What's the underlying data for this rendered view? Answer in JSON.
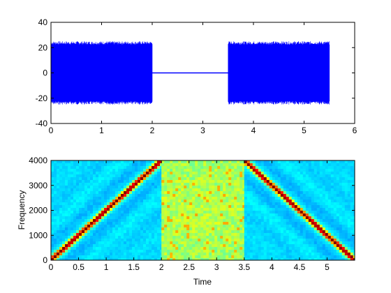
{
  "chart_data": [
    {
      "type": "line",
      "title": "",
      "xlabel": "",
      "ylabel": "",
      "xlim": [
        0,
        6
      ],
      "ylim": [
        -40,
        40
      ],
      "xticks": [
        0,
        1,
        2,
        3,
        4,
        5,
        6
      ],
      "yticks": [
        -40,
        -20,
        0,
        20,
        40
      ],
      "grid": false,
      "series_color": "#0000ff",
      "envelope": {
        "x": [
          0,
          2,
          2.0,
          3.5,
          3.5,
          5.5
        ],
        "amplitude": [
          25,
          25,
          0.4,
          0.4,
          25,
          25
        ]
      },
      "segments": [
        {
          "x_start": 0,
          "x_end": 2,
          "amplitude": 25
        },
        {
          "x_start": 2,
          "x_end": 3.5,
          "amplitude": 0.4
        },
        {
          "x_start": 3.5,
          "x_end": 5.5,
          "amplitude": 25
        }
      ]
    },
    {
      "type": "heatmap",
      "title": "",
      "xlabel": "Time",
      "ylabel": "Frequency",
      "xlim": [
        0,
        5.5
      ],
      "ylim": [
        0,
        4000
      ],
      "xticks": [
        0,
        0.5,
        1,
        1.5,
        2,
        2.5,
        3,
        3.5,
        4,
        4.5,
        5
      ],
      "yticks": [
        0,
        1000,
        2000,
        3000,
        4000
      ],
      "grid": false,
      "colormap": "jet",
      "regions": [
        {
          "kind": "chirp-up",
          "x_start": 0,
          "x_end": 2,
          "f_start": 0,
          "f_end": 4000
        },
        {
          "kind": "noise",
          "x_start": 2,
          "x_end": 3.5
        },
        {
          "kind": "chirp-down",
          "x_start": 3.5,
          "x_end": 5.5,
          "f_start": 4000,
          "f_end": 0
        }
      ]
    }
  ]
}
